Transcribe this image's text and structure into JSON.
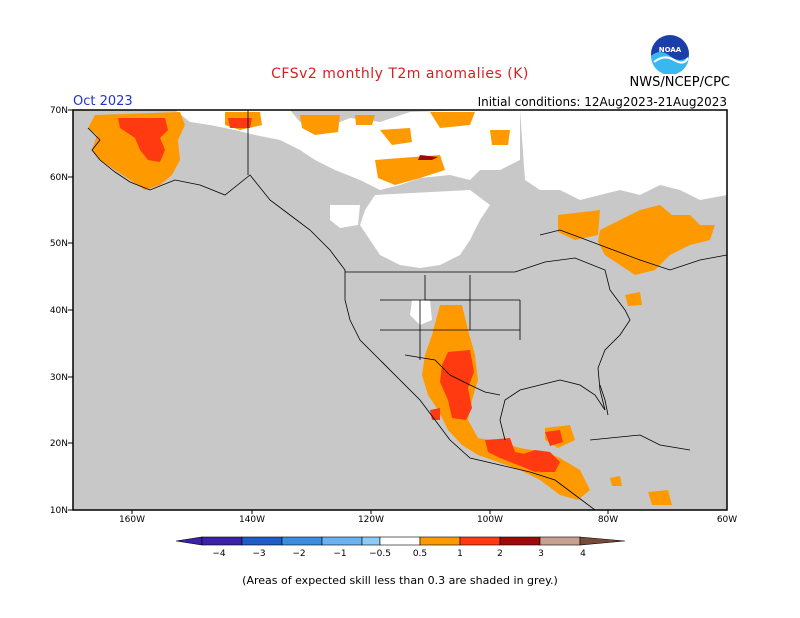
{
  "title": "CFSv2 monthly T2m anomalies (K)",
  "month": "Oct 2023",
  "initial_conditions": "Initial conditions: 12Aug2023-21Aug2023",
  "agency": "NWS/NCEP/CPC",
  "logo_text": "NOAA",
  "footnote": "(Areas of expected skill less than 0.3 are shaded in grey.)",
  "map": {
    "lon_range": [
      -170,
      -60
    ],
    "lat_range": [
      10,
      70
    ],
    "lat_labels": [
      "70N",
      "60N",
      "50N",
      "40N",
      "30N",
      "20N",
      "10N"
    ],
    "lon_labels": [
      "160W",
      "140W",
      "120W",
      "100W",
      "80W",
      "60W"
    ],
    "land_color": "#c8c8c8",
    "nodata_color": "#ffffff"
  },
  "colorbar": {
    "labels": [
      "−4",
      "−3",
      "−2",
      "−1",
      "−0.5",
      "0.5",
      "1",
      "2",
      "3",
      "4"
    ],
    "colors": [
      "#3b22a8",
      "#1f5cc8",
      "#3a8ee0",
      "#6bb2f0",
      "#8ccaf8",
      "#ffffff",
      "#ff9900",
      "#ff3a10",
      "#9e0a0a",
      "#c8a090",
      "#7a4a38"
    ]
  },
  "anomaly_regions": [
    {
      "name": "alaska-west",
      "category": "0.5-1"
    },
    {
      "name": "alaska-west-core",
      "category": "1-2"
    },
    {
      "name": "alaska-north",
      "category": "0.5-1"
    },
    {
      "name": "canada-north",
      "category": "0.5-1"
    },
    {
      "name": "quebec-ontario",
      "category": "0.5-1"
    },
    {
      "name": "southwest-us-mexico",
      "category": "0.5-1"
    },
    {
      "name": "mexico-core",
      "category": "1-2"
    },
    {
      "name": "central-america",
      "category": "1-2"
    },
    {
      "name": "hudson-bay-north",
      "category": "2-3"
    }
  ]
}
